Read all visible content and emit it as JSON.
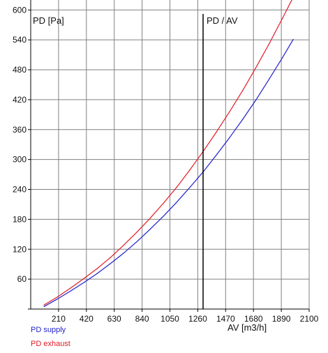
{
  "chart_data": {
    "type": "line",
    "title": "",
    "ylabel": "PD [Pa]",
    "xlabel": "AV [m3/h]",
    "marker": {
      "label": "PD / AV",
      "x": 1300
    },
    "xlim": [
      0,
      2100
    ],
    "ylim": [
      0,
      620
    ],
    "x_ticks": [
      210,
      420,
      630,
      840,
      1050,
      1260,
      1470,
      1680,
      1890,
      2100
    ],
    "y_ticks": [
      60,
      120,
      180,
      240,
      300,
      360,
      420,
      480,
      540,
      600
    ],
    "x_tick_labels": [
      "210",
      "420",
      "630",
      "840",
      "1050",
      "1260",
      "1470",
      "1680",
      "1890",
      "2100"
    ],
    "y_tick_labels": [
      "60",
      "120",
      "180",
      "240",
      "300",
      "360",
      "420",
      "480",
      "540",
      "600"
    ],
    "grid": true,
    "legend": "bottom-left",
    "series": [
      {
        "name": "PD supply",
        "color": "#1f1fcc",
        "x": [
          100,
          200,
          300,
          400,
          500,
          600,
          700,
          800,
          900,
          1000,
          1100,
          1200,
          1300,
          1400,
          1500,
          1600,
          1700,
          1800,
          1900,
          1980
        ],
        "y": [
          5,
          20,
          36,
          53,
          71,
          91,
          112,
          135,
          160,
          186,
          214,
          244,
          275,
          309,
          344,
          381,
          420,
          462,
          505,
          541
        ]
      },
      {
        "name": "PD exhaust",
        "color": "#e01b24",
        "x": [
          100,
          200,
          300,
          400,
          500,
          600,
          700,
          800,
          900,
          1000,
          1100,
          1200,
          1300,
          1400,
          1500,
          1600,
          1700,
          1800,
          1900,
          2000
        ],
        "y": [
          8,
          24,
          42,
          61,
          81,
          103,
          128,
          154,
          182,
          212,
          244,
          279,
          316,
          355,
          396,
          439,
          485,
          533,
          584,
          636
        ]
      }
    ]
  }
}
